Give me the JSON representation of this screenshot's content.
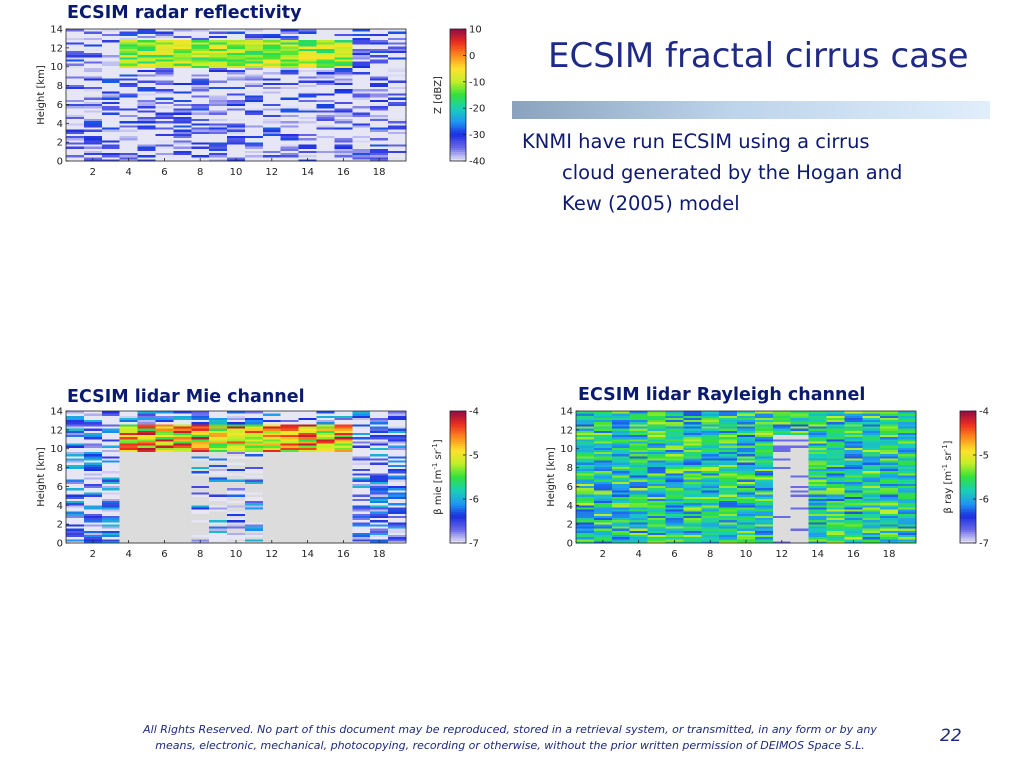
{
  "slide": {
    "title": "ECSIM fractal cirrus case",
    "bullet": {
      "line1": "KNMI have run ECSIM using a cirrus",
      "line2": "cloud generated by the Hogan and",
      "line3": "Kew (2005) model"
    },
    "footer_line1": "All Rights Reserved. No part of this document may be reproduced, stored in a retrieval system, or transmitted, in any form or by any",
    "footer_line2": "means, electronic, mechanical, photocopying, recording or otherwise, without the prior written permission of DEIMOS Space S.L.",
    "page_number": "22"
  },
  "chart_data": [
    {
      "id": "radar",
      "type": "heatmap",
      "title": "ECSIM radar reflectivity",
      "xlabel": "",
      "ylabel": "Height [km]",
      "xlim": [
        0.5,
        19.5
      ],
      "ylim": [
        0,
        14
      ],
      "xticks": [
        2,
        4,
        6,
        8,
        10,
        12,
        14,
        16,
        18
      ],
      "yticks": [
        0,
        2,
        4,
        6,
        8,
        10,
        12,
        14
      ],
      "colorbar": {
        "label": "Z [dBZ]",
        "min": -40,
        "max": 10,
        "ticks": [
          10,
          0,
          -10,
          -20,
          -30,
          -40
        ]
      },
      "layer": {
        "x_start": 3.5,
        "x_end": 16.5,
        "y_bottom": 9.9,
        "y_top": 12.8,
        "value_range": [
          -18,
          -5
        ]
      },
      "background_value_range": [
        -40,
        -28
      ],
      "background_note": "noise"
    },
    {
      "id": "mie",
      "type": "heatmap",
      "title": "ECSIM lidar Mie channel",
      "xlabel": "",
      "ylabel": "Height [km]",
      "xlim": [
        0.5,
        19.5
      ],
      "ylim": [
        0,
        14
      ],
      "xticks": [
        2,
        4,
        6,
        8,
        10,
        12,
        14,
        16,
        18
      ],
      "yticks": [
        0,
        2,
        4,
        6,
        8,
        10,
        12,
        14
      ],
      "colorbar": {
        "label_pre": "β mie [m",
        "label_sup1": "-1",
        "label_mid": " sr",
        "label_sup2": "-1",
        "label_post": "]",
        "min": -7,
        "max": -4,
        "ticks": [
          -4,
          -5,
          -6,
          -7
        ]
      },
      "layer": {
        "x_start": 3.5,
        "x_end": 16.5,
        "y_bottom": 9.8,
        "y_top": 12.6,
        "value_range": [
          -5.6,
          -4.1
        ]
      },
      "attenuated_below_layer": true,
      "background_value_range": [
        -7,
        -5.9
      ]
    },
    {
      "id": "rayleigh",
      "type": "heatmap",
      "title": "ECSIM lidar Rayleigh channel",
      "xlabel": "",
      "ylabel": "Height [km]",
      "xlim": [
        0.5,
        19.5
      ],
      "ylim": [
        0,
        14
      ],
      "xticks": [
        2,
        4,
        6,
        8,
        10,
        12,
        14,
        16,
        18
      ],
      "yticks": [
        0,
        2,
        4,
        6,
        8,
        10,
        12,
        14
      ],
      "colorbar": {
        "label_pre": "β ray [m",
        "label_sup1": "-1",
        "label_mid": " sr",
        "label_sup2": "-1",
        "label_post": "]",
        "min": -7,
        "max": -4,
        "ticks": [
          -4,
          -5,
          -6,
          -7
        ]
      },
      "attenuated_region": {
        "x_start": 11.5,
        "x_end": 13.5,
        "y_bottom": 0,
        "y_top": 11.5
      },
      "background_value_range": [
        -6.3,
        -5.2
      ]
    }
  ],
  "colormap": [
    "#e8e8f6",
    "#6a6ae6",
    "#1b2fe0",
    "#1f9bf0",
    "#19d0b2",
    "#32e03c",
    "#c2ee28",
    "#ffe22a",
    "#ff8a1e",
    "#ea2c20",
    "#8e0a48"
  ]
}
